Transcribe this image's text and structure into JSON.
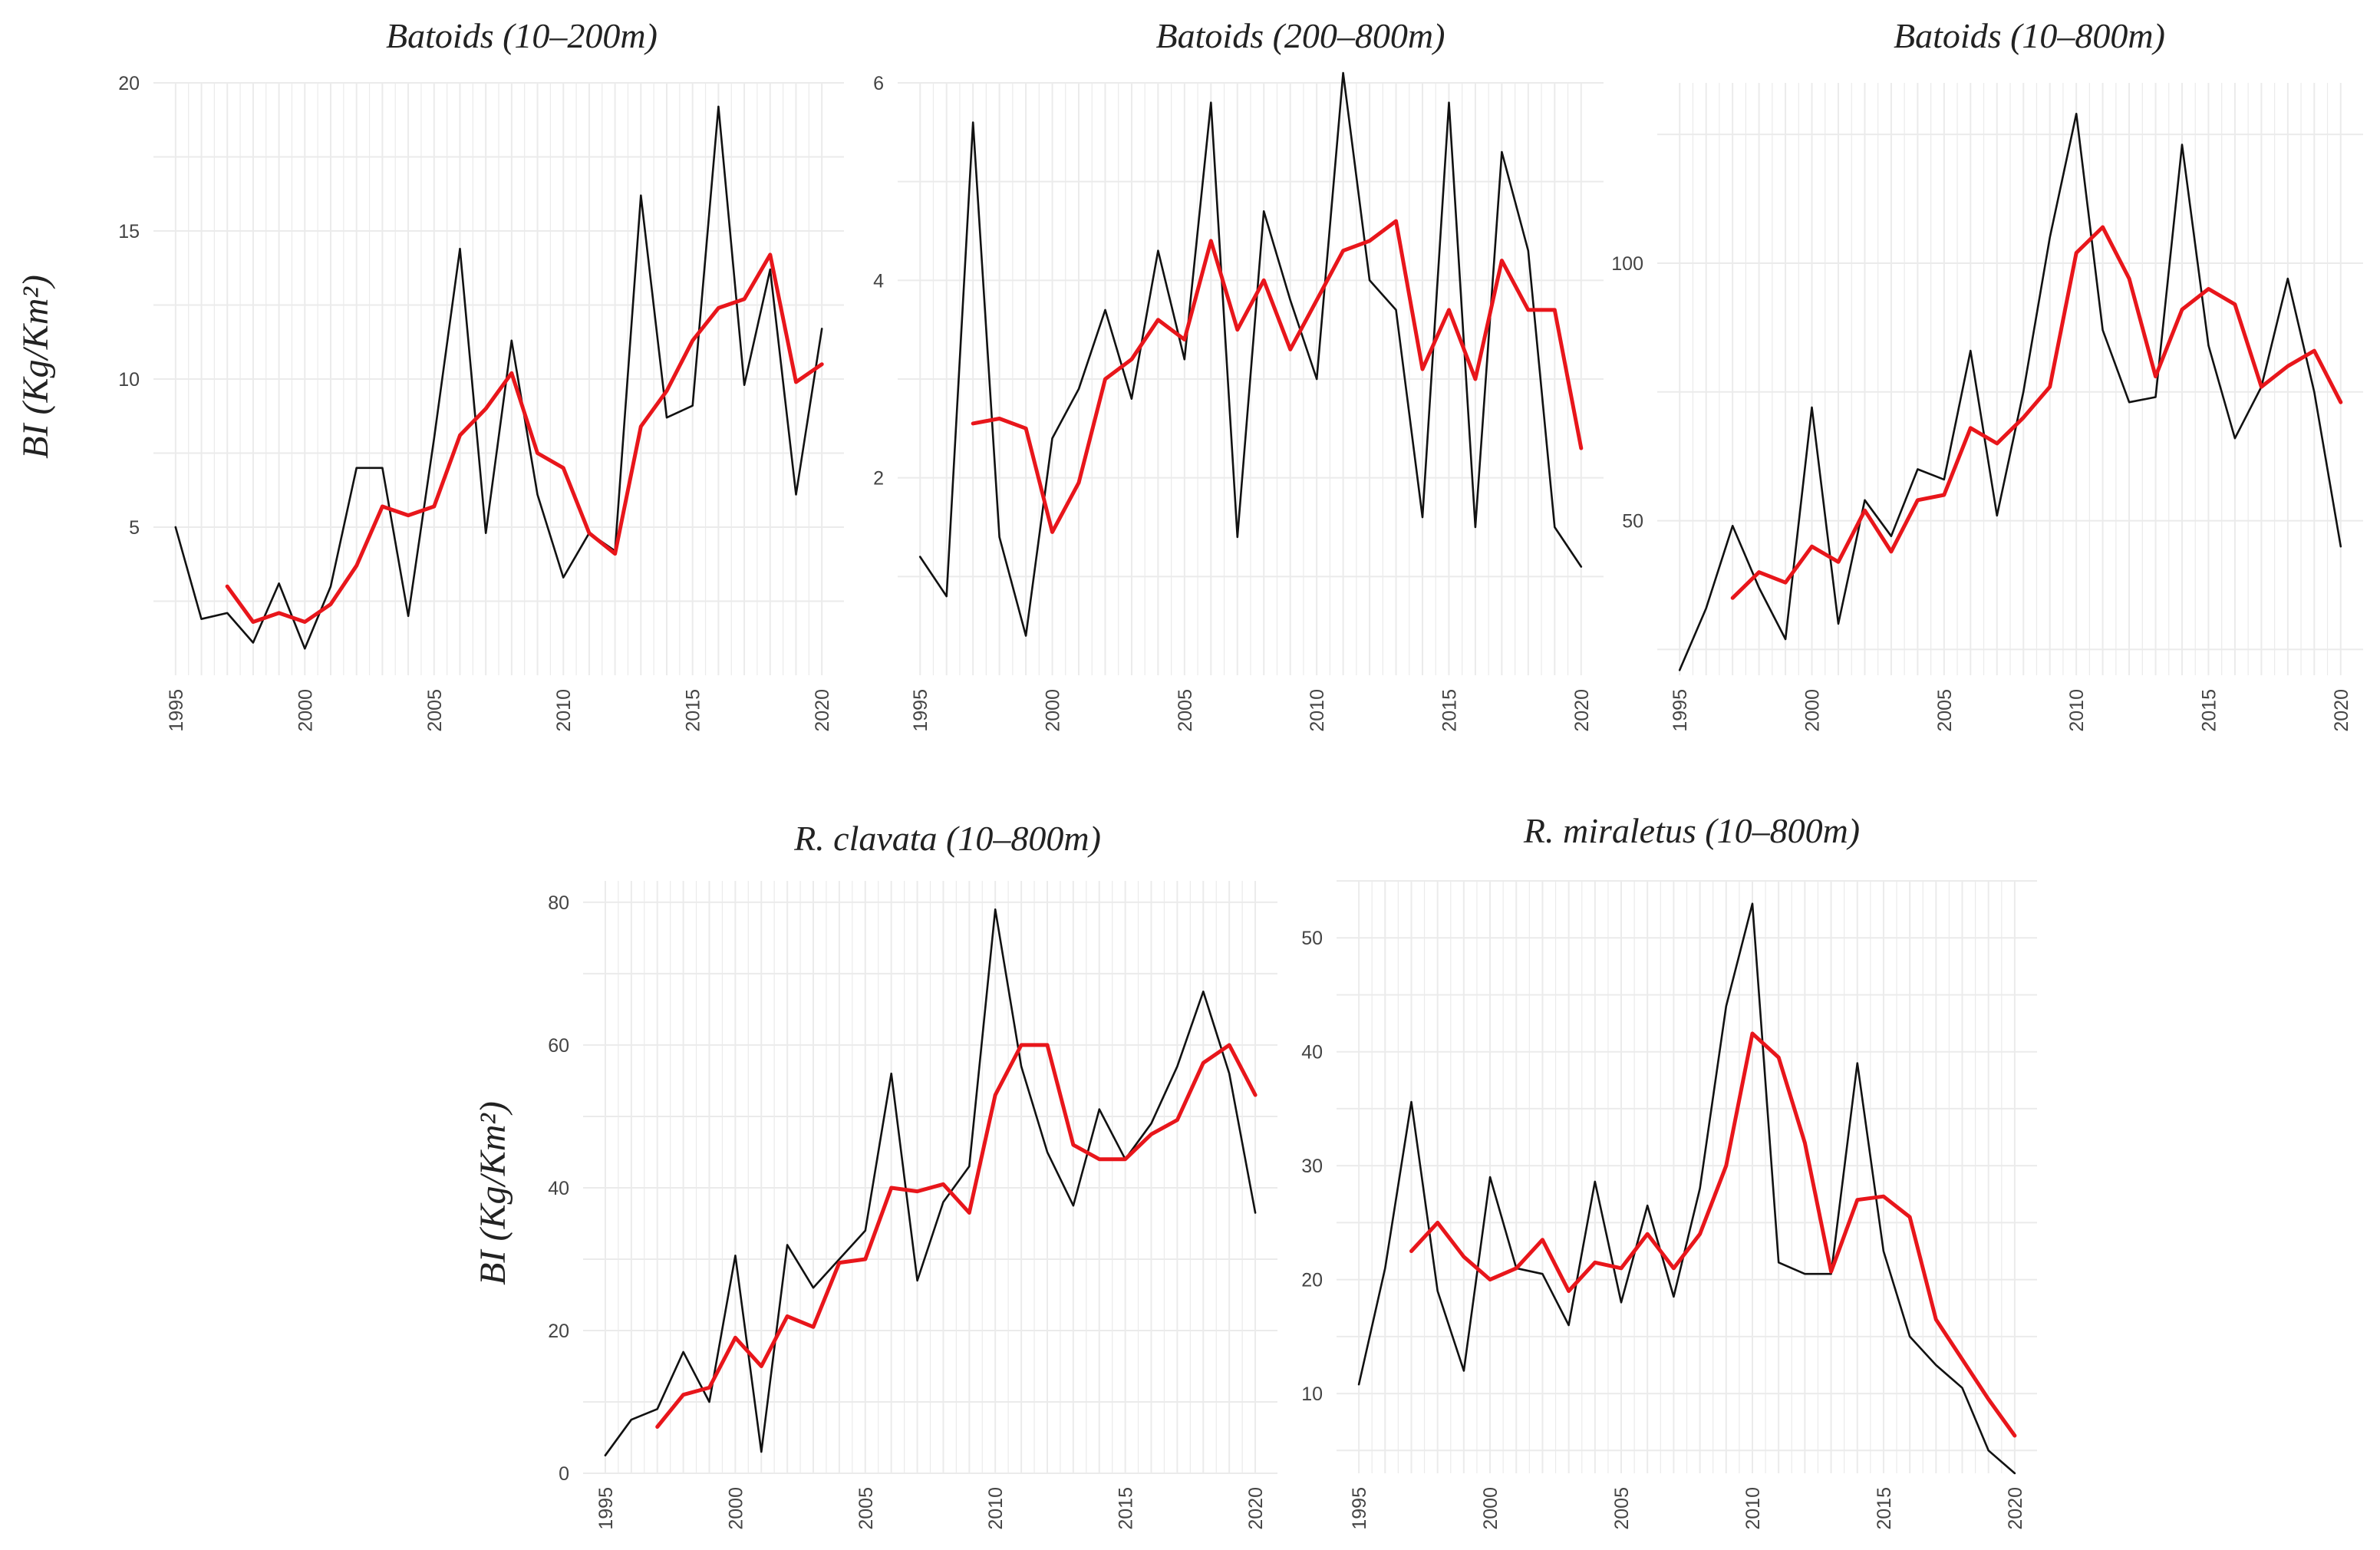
{
  "figure": {
    "ylabel_row1": "BI (Kg/Km²)",
    "ylabel_row2": "BI (Kg/Km²)"
  },
  "colors": {
    "observed": "#111111",
    "smoothed": "#e8161b",
    "grid": "#ebebeb"
  },
  "chart_data": [
    {
      "type": "line",
      "title": "Batoids (10–200m)",
      "xlabel": "",
      "ylabel": "BI (Kg/Km²)",
      "xlim": [
        1994.5,
        2020.5
      ],
      "ylim": [
        0,
        20
      ],
      "xticks": [
        1995,
        2000,
        2005,
        2010,
        2015,
        2020
      ],
      "yticks": [
        5,
        10,
        15,
        20
      ],
      "x": [
        1995,
        1996,
        1997,
        1998,
        1999,
        2000,
        2001,
        2002,
        2003,
        2004,
        2005,
        2006,
        2007,
        2008,
        2009,
        2010,
        2011,
        2012,
        2013,
        2014,
        2015,
        2016,
        2017,
        2018,
        2019,
        2020
      ],
      "series": [
        {
          "name": "observed",
          "values": [
            5.0,
            1.9,
            2.1,
            1.1,
            3.1,
            0.9,
            3.0,
            7.0,
            7.0,
            2.0,
            8.0,
            14.4,
            4.8,
            11.3,
            6.1,
            3.3,
            4.8,
            4.2,
            16.2,
            8.7,
            9.1,
            19.2,
            9.8,
            13.7,
            6.1,
            11.7
          ]
        },
        {
          "name": "smoothed",
          "values": [
            null,
            null,
            3.0,
            1.8,
            2.1,
            1.8,
            2.4,
            3.7,
            5.7,
            5.4,
            5.7,
            8.1,
            9.0,
            10.2,
            7.5,
            7.0,
            4.8,
            4.1,
            8.4,
            9.6,
            11.3,
            12.4,
            12.7,
            14.2,
            9.9,
            10.5
          ]
        }
      ]
    },
    {
      "type": "line",
      "title": "Batoids (200–800m)",
      "xlabel": "",
      "ylabel": "BI (Kg/Km²)",
      "xlim": [
        1994.5,
        2020.5
      ],
      "ylim": [
        0,
        6
      ],
      "xticks": [
        1995,
        2000,
        2005,
        2010,
        2015,
        2020
      ],
      "yticks": [
        2,
        4,
        6
      ],
      "x": [
        1995,
        1996,
        1997,
        1998,
        1999,
        2000,
        2001,
        2002,
        2003,
        2004,
        2005,
        2006,
        2007,
        2008,
        2009,
        2010,
        2011,
        2012,
        2013,
        2014,
        2015,
        2016,
        2017,
        2018,
        2019,
        2020
      ],
      "series": [
        {
          "name": "observed",
          "values": [
            1.2,
            0.8,
            5.6,
            1.4,
            0.4,
            2.4,
            2.9,
            3.7,
            2.8,
            4.3,
            3.2,
            5.8,
            1.4,
            4.7,
            3.8,
            3.0,
            6.1,
            4.0,
            3.7,
            1.6,
            5.8,
            1.5,
            5.3,
            4.3,
            1.5,
            1.1
          ]
        },
        {
          "name": "smoothed",
          "values": [
            null,
            null,
            2.55,
            2.6,
            2.5,
            1.45,
            1.95,
            3.0,
            3.2,
            3.6,
            3.4,
            4.4,
            3.5,
            4.0,
            3.3,
            3.8,
            4.3,
            4.4,
            4.6,
            3.1,
            3.7,
            3.0,
            4.2,
            3.7,
            3.7,
            2.3
          ]
        }
      ]
    },
    {
      "type": "line",
      "title": "Batoids (10–800m)",
      "xlabel": "",
      "ylabel": "BI (Kg/Km²)",
      "xlim": [
        1994.5,
        2020.5
      ],
      "ylim": [
        20,
        135
      ],
      "xticks": [
        1995,
        2000,
        2005,
        2010,
        2015,
        2020
      ],
      "yticks": [
        50,
        100
      ],
      "x": [
        1995,
        1996,
        1997,
        1998,
        1999,
        2000,
        2001,
        2002,
        2003,
        2004,
        2005,
        2006,
        2007,
        2008,
        2009,
        2010,
        2011,
        2012,
        2013,
        2014,
        2015,
        2016,
        2017,
        2018,
        2019,
        2020
      ],
      "series": [
        {
          "name": "observed",
          "values": [
            21,
            33,
            49,
            37,
            27,
            72,
            30,
            54,
            47,
            60,
            58,
            83,
            51,
            75,
            105,
            129,
            87,
            73,
            74,
            123,
            84,
            66,
            76,
            97,
            75,
            45
          ]
        },
        {
          "name": "smoothed",
          "values": [
            null,
            null,
            35,
            40,
            38,
            45,
            42,
            52,
            44,
            54,
            55,
            68,
            65,
            70,
            76,
            102,
            107,
            97,
            78,
            91,
            95,
            92,
            76,
            80,
            83,
            73
          ]
        }
      ]
    },
    {
      "type": "line",
      "title": "R. clavata (10–800m)",
      "xlabel": "",
      "ylabel": "BI (Kg/Km²)",
      "xlim": [
        1994.5,
        2020.5
      ],
      "ylim": [
        0,
        83
      ],
      "xticks": [
        1995,
        2000,
        2005,
        2010,
        2015,
        2020
      ],
      "yticks": [
        0,
        20,
        40,
        60,
        80
      ],
      "x": [
        1995,
        1996,
        1997,
        1998,
        1999,
        2000,
        2001,
        2002,
        2003,
        2004,
        2005,
        2006,
        2007,
        2008,
        2009,
        2010,
        2011,
        2012,
        2013,
        2014,
        2015,
        2016,
        2017,
        2018,
        2019,
        2020
      ],
      "series": [
        {
          "name": "observed",
          "values": [
            2.5,
            7.5,
            9,
            17,
            10,
            30.5,
            3,
            32,
            26,
            30,
            34,
            56,
            27,
            38,
            43,
            79,
            57,
            45,
            37.5,
            51,
            44,
            49,
            57,
            67.5,
            56,
            36.5
          ]
        },
        {
          "name": "smoothed",
          "values": [
            null,
            null,
            6.5,
            11,
            12,
            19,
            15,
            22,
            20.5,
            29.5,
            30,
            40,
            39.5,
            40.5,
            36.5,
            53,
            60,
            60,
            46,
            44,
            44,
            47.5,
            49.5,
            57.5,
            60,
            53
          ]
        }
      ]
    },
    {
      "type": "line",
      "title": "R. miraletus (10–800m)",
      "xlabel": "",
      "ylabel": "BI (Kg/Km²)",
      "xlim": [
        1994.5,
        2020.5
      ],
      "ylim": [
        3,
        55
      ],
      "xticks": [
        1995,
        2000,
        2005,
        2010,
        2015,
        2020
      ],
      "yticks": [
        10,
        20,
        30,
        40,
        50
      ],
      "x": [
        1995,
        1996,
        1997,
        1998,
        1999,
        2000,
        2001,
        2002,
        2003,
        2004,
        2005,
        2006,
        2007,
        2008,
        2009,
        2010,
        2011,
        2012,
        2013,
        2014,
        2015,
        2016,
        2017,
        2018,
        2019,
        2020
      ],
      "series": [
        {
          "name": "observed",
          "values": [
            10.8,
            21,
            35.6,
            19,
            12,
            29,
            21,
            20.5,
            16,
            28.6,
            18,
            26.5,
            18.5,
            28,
            44,
            53,
            21.5,
            20.5,
            20.5,
            39,
            22.5,
            15,
            12.5,
            10.5,
            5,
            3
          ]
        },
        {
          "name": "smoothed",
          "values": [
            null,
            null,
            22.5,
            25,
            22,
            20,
            21,
            23.5,
            19,
            21.5,
            21,
            24,
            21,
            24,
            30,
            41.6,
            39.5,
            32,
            20.7,
            27,
            27.3,
            25.5,
            16.5,
            13,
            9.5,
            6.3
          ]
        }
      ]
    }
  ]
}
